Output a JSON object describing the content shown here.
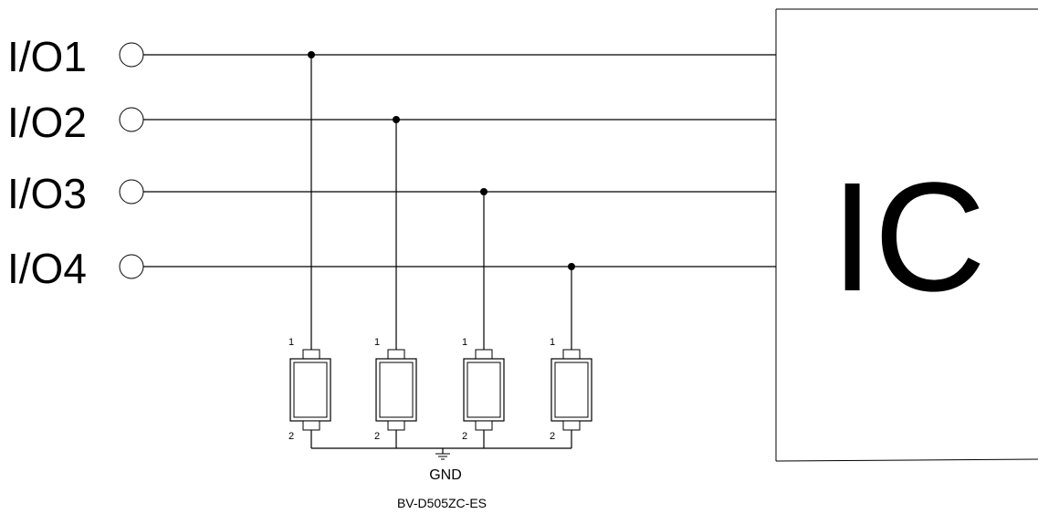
{
  "io_pins": [
    {
      "label": "I/O1"
    },
    {
      "label": "I/O2"
    },
    {
      "label": "I/O3"
    },
    {
      "label": "I/O4"
    }
  ],
  "ic": {
    "label": "IC"
  },
  "diodes": [
    {
      "pin_top": "1",
      "pin_bottom": "2"
    },
    {
      "pin_top": "1",
      "pin_bottom": "2"
    },
    {
      "pin_top": "1",
      "pin_bottom": "2"
    },
    {
      "pin_top": "1",
      "pin_bottom": "2"
    }
  ],
  "ground": {
    "label": "GND"
  },
  "part_number": "BV-D505ZC-ES"
}
